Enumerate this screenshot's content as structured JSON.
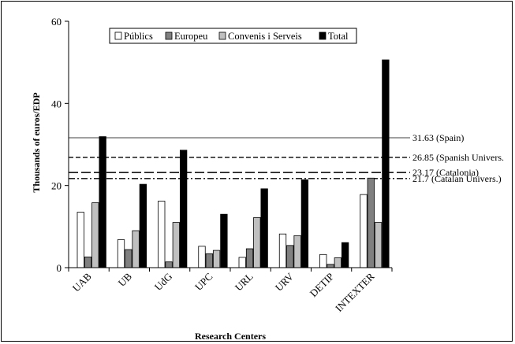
{
  "chart_data": {
    "type": "bar",
    "title": "",
    "xlabel": "Research Centers",
    "ylabel": "Thousands of euros/EDP",
    "ylim": [
      0,
      60
    ],
    "yticks": [
      0,
      20,
      40,
      60
    ],
    "categories": [
      "UAB",
      "UB",
      "UdG",
      "UPC",
      "URL",
      "URV",
      "DETIP",
      "INTEXTER"
    ],
    "series": [
      {
        "name": "Públics",
        "color": "#ffffff",
        "values": [
          13.5,
          6.8,
          16.2,
          5.2,
          2.5,
          8.2,
          3.2,
          17.8
        ]
      },
      {
        "name": "Europeu",
        "color": "#808080",
        "values": [
          2.6,
          4.4,
          1.4,
          3.4,
          4.6,
          5.4,
          0.8,
          21.8
        ]
      },
      {
        "name": "Convenis i Serveis",
        "color": "#c0c0c0",
        "values": [
          15.8,
          9.0,
          11.0,
          4.2,
          12.2,
          7.8,
          2.4,
          11.0
        ]
      },
      {
        "name": "Total",
        "color": "#000000",
        "values": [
          31.9,
          20.3,
          28.6,
          13.0,
          19.2,
          21.4,
          6.1,
          50.6
        ]
      }
    ],
    "reference_lines": [
      {
        "value": 31.63,
        "label": "31.63 (Spain)",
        "style": "solid"
      },
      {
        "value": 26.85,
        "label": "26.85 (Spanish Univers.",
        "style": "dashed"
      },
      {
        "value": 23.17,
        "label": "23.17 (Catalonia)",
        "style": "longdash"
      },
      {
        "value": 21.7,
        "label": "21.7 (Catalan Univers.)",
        "style": "dashdot"
      }
    ],
    "legend_position": "top-center",
    "grid": false
  }
}
